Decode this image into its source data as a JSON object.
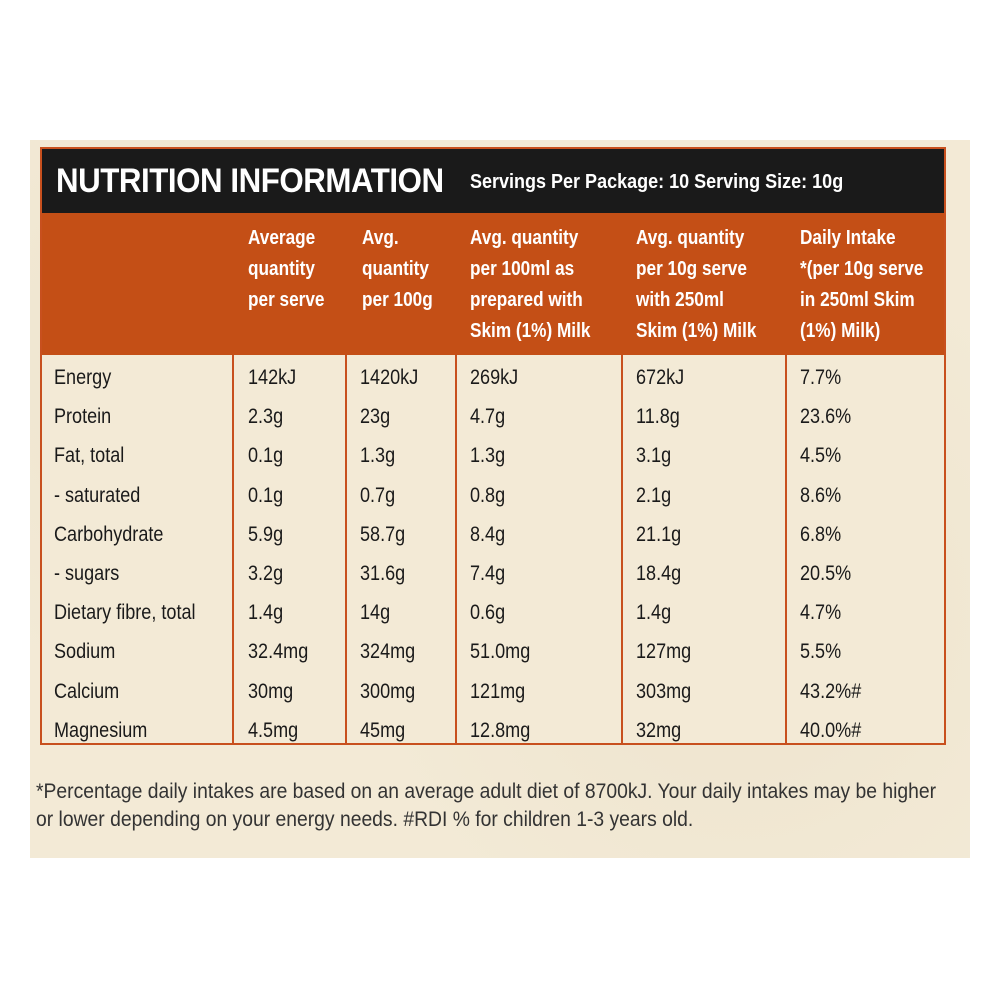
{
  "title": "NUTRITION INFORMATION",
  "servings_line": "Servings Per Package: 10   Serving Size: 10g",
  "headers": [
    "",
    "Average\nquantity\nper serve",
    "Avg.\nquantity\nper 100g",
    "Avg. quantity\nper 100ml as\nprepared with\nSkim (1%) Milk",
    "Avg. quantity\nper 10g serve\nwith 250ml\nSkim (1%) Milk",
    "Daily Intake\n*(per 10g serve\nin 250ml Skim\n(1%) Milk)"
  ],
  "rows": [
    [
      "Energy",
      "142kJ",
      "1420kJ",
      "269kJ",
      "672kJ",
      "7.7%"
    ],
    [
      "Protein",
      "2.3g",
      "23g",
      "4.7g",
      "11.8g",
      "23.6%"
    ],
    [
      "Fat, total",
      "0.1g",
      "1.3g",
      "1.3g",
      "3.1g",
      "4.5%"
    ],
    [
      "- saturated",
      "0.1g",
      "0.7g",
      "0.8g",
      "2.1g",
      "8.6%"
    ],
    [
      "Carbohydrate",
      "5.9g",
      "58.7g",
      "8.4g",
      "21.1g",
      "6.8%"
    ],
    [
      "- sugars",
      "3.2g",
      "31.6g",
      "7.4g",
      "18.4g",
      "20.5%"
    ],
    [
      "Dietary fibre, total",
      "1.4g",
      "14g",
      "0.6g",
      "1.4g",
      "4.7%"
    ],
    [
      "Sodium",
      "32.4mg",
      "324mg",
      "51.0mg",
      "127mg",
      "5.5%"
    ],
    [
      "Calcium",
      "30mg",
      "300mg",
      "121mg",
      "303mg",
      "43.2%#"
    ],
    [
      "Magnesium",
      "4.5mg",
      "45mg",
      "12.8mg",
      "32mg",
      "40.0%#"
    ]
  ],
  "footnote_line1": "*Percentage daily intakes are based on an average adult diet of 8700kJ.  Your daily intakes may be higher",
  "footnote_line2": "or lower depending on your energy needs. #RDI % for children 1-3 years old.",
  "colors": {
    "title_bar": "#1a1a1a",
    "header_orange": "#c44f16",
    "border_orange": "#c8501e",
    "background": "#f3ead6"
  }
}
